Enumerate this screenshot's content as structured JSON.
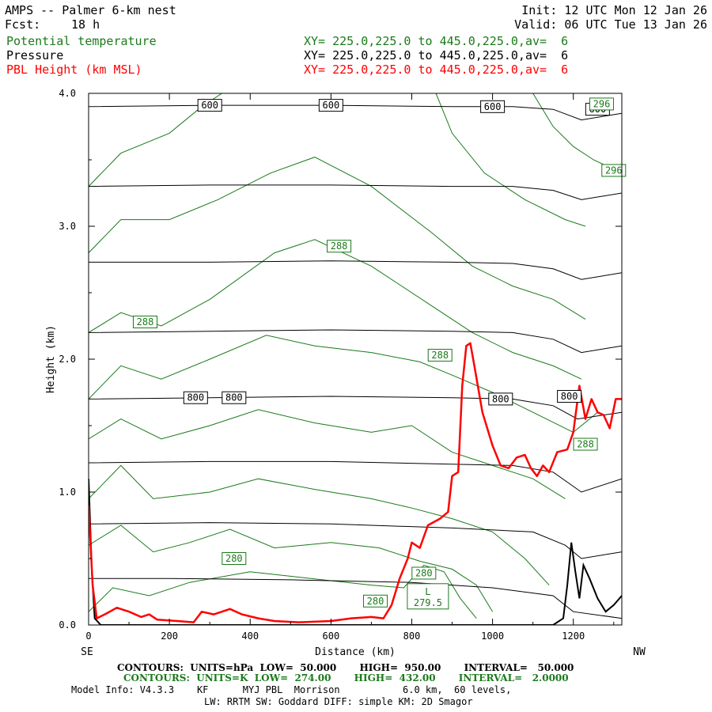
{
  "header": {
    "title": "AMPS -- Palmer 6-km nest",
    "fcst_label": "Fcst:",
    "fcst_value": "18 h",
    "init": "Init: 12 UTC Mon 12 Jan 26",
    "valid": "Valid: 06 UTC Tue 13 Jan 26",
    "fields": [
      {
        "name": "Potential temperature",
        "xy": "XY= 225.0,225.0 to 445.0,225.0,av=  6",
        "color": "#1a7a1a"
      },
      {
        "name": "Pressure",
        "xy": "XY= 225.0,225.0 to 445.0,225.0,av=  6",
        "color": "#000000"
      },
      {
        "name": "PBL Height (km MSL)",
        "xy": "XY= 225.0,225.0 to 445.0,225.0,av=  6",
        "color": "#ff0000"
      }
    ]
  },
  "chart_data": {
    "type": "line",
    "xlabel": "Distance (km)",
    "ylabel": "Height (km)",
    "xlim": [
      0,
      1320
    ],
    "ylim": [
      0,
      4.0
    ],
    "x_ticks": [
      0,
      200,
      400,
      600,
      800,
      1000,
      1200
    ],
    "y_ticks": [
      "0.0",
      "1.0",
      "2.0",
      "3.0",
      "4.0"
    ],
    "x_end_labels": {
      "left": "SE",
      "right": "NW"
    },
    "pressure_contours": [
      {
        "level": 950,
        "points": [
          [
            0,
            0.35
          ],
          [
            200,
            0.35
          ],
          [
            500,
            0.34
          ],
          [
            800,
            0.32
          ],
          [
            1000,
            0.28
          ],
          [
            1150,
            0.22
          ],
          [
            1200,
            0.1
          ],
          [
            1320,
            0.05
          ]
        ]
      },
      {
        "level": 900,
        "points": [
          [
            0,
            0.76
          ],
          [
            300,
            0.77
          ],
          [
            600,
            0.76
          ],
          [
            900,
            0.73
          ],
          [
            1100,
            0.7
          ],
          [
            1180,
            0.6
          ],
          [
            1220,
            0.5
          ],
          [
            1320,
            0.55
          ]
        ]
      },
      {
        "level": 850,
        "points": [
          [
            0,
            1.22
          ],
          [
            300,
            1.23
          ],
          [
            600,
            1.23
          ],
          [
            900,
            1.21
          ],
          [
            1050,
            1.2
          ],
          [
            1150,
            1.15
          ],
          [
            1220,
            1.0
          ],
          [
            1320,
            1.1
          ]
        ]
      },
      {
        "level": 800,
        "points": [
          [
            0,
            1.7
          ],
          [
            300,
            1.71
          ],
          [
            600,
            1.72
          ],
          [
            900,
            1.71
          ],
          [
            1050,
            1.7
          ],
          [
            1150,
            1.65
          ],
          [
            1210,
            1.55
          ],
          [
            1320,
            1.6
          ]
        ]
      },
      {
        "level": 750,
        "points": [
          [
            0,
            2.2
          ],
          [
            300,
            2.21
          ],
          [
            600,
            2.22
          ],
          [
            900,
            2.21
          ],
          [
            1050,
            2.2
          ],
          [
            1150,
            2.15
          ],
          [
            1220,
            2.05
          ],
          [
            1320,
            2.1
          ]
        ]
      },
      {
        "level": 700,
        "points": [
          [
            0,
            2.73
          ],
          [
            300,
            2.73
          ],
          [
            600,
            2.74
          ],
          [
            900,
            2.73
          ],
          [
            1050,
            2.72
          ],
          [
            1150,
            2.68
          ],
          [
            1220,
            2.6
          ],
          [
            1320,
            2.65
          ]
        ]
      },
      {
        "level": 650,
        "points": [
          [
            0,
            3.3
          ],
          [
            300,
            3.31
          ],
          [
            600,
            3.31
          ],
          [
            900,
            3.3
          ],
          [
            1050,
            3.3
          ],
          [
            1150,
            3.27
          ],
          [
            1220,
            3.2
          ],
          [
            1320,
            3.25
          ]
        ]
      },
      {
        "level": 600,
        "points": [
          [
            0,
            3.9
          ],
          [
            300,
            3.91
          ],
          [
            600,
            3.91
          ],
          [
            900,
            3.9
          ],
          [
            1050,
            3.9
          ],
          [
            1150,
            3.88
          ],
          [
            1220,
            3.8
          ],
          [
            1320,
            3.85
          ]
        ]
      }
    ],
    "pressure_labels": [
      {
        "text": "600",
        "x": 300,
        "y": 3.91
      },
      {
        "text": "600",
        "x": 600,
        "y": 3.91
      },
      {
        "text": "600",
        "x": 1000,
        "y": 3.9
      },
      {
        "text": "600",
        "x": 1260,
        "y": 3.88
      },
      {
        "text": "800",
        "x": 265,
        "y": 1.71
      },
      {
        "text": "800",
        "x": 360,
        "y": 1.71
      },
      {
        "text": "800",
        "x": 1020,
        "y": 1.7
      },
      {
        "text": "800",
        "x": 1190,
        "y": 1.72
      }
    ],
    "theta_contours": [
      {
        "level": 280,
        "points": [
          [
            0,
            0.1
          ],
          [
            60,
            0.28
          ],
          [
            150,
            0.22
          ],
          [
            250,
            0.32
          ],
          [
            400,
            0.4
          ],
          [
            550,
            0.35
          ],
          [
            700,
            0.3
          ],
          [
            780,
            0.28
          ],
          [
            830,
            0.45
          ],
          [
            880,
            0.4
          ],
          [
            920,
            0.2
          ],
          [
            960,
            0.05
          ]
        ]
      },
      {
        "level": 282,
        "points": [
          [
            0,
            0.6
          ],
          [
            80,
            0.75
          ],
          [
            160,
            0.55
          ],
          [
            250,
            0.62
          ],
          [
            350,
            0.72
          ],
          [
            460,
            0.58
          ],
          [
            600,
            0.62
          ],
          [
            720,
            0.58
          ],
          [
            820,
            0.48
          ],
          [
            900,
            0.42
          ],
          [
            960,
            0.3
          ],
          [
            1000,
            0.1
          ]
        ]
      },
      {
        "level": 284,
        "points": [
          [
            0,
            0.95
          ],
          [
            80,
            1.2
          ],
          [
            160,
            0.95
          ],
          [
            300,
            1.0
          ],
          [
            420,
            1.1
          ],
          [
            560,
            1.02
          ],
          [
            700,
            0.95
          ],
          [
            800,
            0.88
          ],
          [
            900,
            0.8
          ],
          [
            1000,
            0.7
          ],
          [
            1080,
            0.5
          ],
          [
            1140,
            0.3
          ]
        ]
      },
      {
        "level": 286,
        "points": [
          [
            0,
            1.4
          ],
          [
            80,
            1.55
          ],
          [
            180,
            1.4
          ],
          [
            300,
            1.5
          ],
          [
            420,
            1.62
          ],
          [
            560,
            1.52
          ],
          [
            700,
            1.45
          ],
          [
            800,
            1.5
          ],
          [
            900,
            1.3
          ],
          [
            1000,
            1.2
          ],
          [
            1100,
            1.1
          ],
          [
            1180,
            0.95
          ]
        ]
      },
      {
        "level": 288,
        "points": [
          [
            0,
            1.7
          ],
          [
            80,
            1.95
          ],
          [
            180,
            1.85
          ],
          [
            300,
            2.0
          ],
          [
            440,
            2.18
          ],
          [
            560,
            2.1
          ],
          [
            700,
            2.05
          ],
          [
            820,
            1.98
          ],
          [
            900,
            1.88
          ],
          [
            1000,
            1.75
          ],
          [
            1100,
            1.6
          ],
          [
            1200,
            1.45
          ],
          [
            1260,
            1.6
          ]
        ]
      },
      {
        "level": 290,
        "points": [
          [
            0,
            2.2
          ],
          [
            80,
            2.35
          ],
          [
            180,
            2.25
          ],
          [
            300,
            2.45
          ],
          [
            460,
            2.8
          ],
          [
            560,
            2.9
          ],
          [
            700,
            2.7
          ],
          [
            850,
            2.4
          ],
          [
            950,
            2.2
          ],
          [
            1050,
            2.05
          ],
          [
            1150,
            1.95
          ],
          [
            1220,
            1.85
          ]
        ]
      },
      {
        "level": 292,
        "points": [
          [
            0,
            2.8
          ],
          [
            80,
            3.05
          ],
          [
            200,
            3.05
          ],
          [
            320,
            3.2
          ],
          [
            450,
            3.4
          ],
          [
            560,
            3.52
          ],
          [
            700,
            3.3
          ],
          [
            850,
            2.95
          ],
          [
            950,
            2.7
          ],
          [
            1050,
            2.55
          ],
          [
            1150,
            2.45
          ],
          [
            1230,
            2.3
          ]
        ]
      },
      {
        "level": 294,
        "points": [
          [
            0,
            3.3
          ],
          [
            80,
            3.55
          ],
          [
            200,
            3.7
          ],
          [
            280,
            3.9
          ],
          [
            330,
            4.0
          ]
        ]
      },
      {
        "level": 294,
        "points": [
          [
            860,
            4.0
          ],
          [
            900,
            3.7
          ],
          [
            980,
            3.4
          ],
          [
            1080,
            3.2
          ],
          [
            1180,
            3.05
          ],
          [
            1230,
            3.0
          ]
        ]
      },
      {
        "level": 296,
        "points": [
          [
            1100,
            4.0
          ],
          [
            1150,
            3.75
          ],
          [
            1200,
            3.6
          ],
          [
            1250,
            3.5
          ],
          [
            1320,
            3.4
          ]
        ]
      }
    ],
    "theta_labels": [
      {
        "text": "280",
        "x": 360,
        "y": 0.5
      },
      {
        "text": "280",
        "x": 710,
        "y": 0.18
      },
      {
        "text": "280",
        "x": 830,
        "y": 0.39
      },
      {
        "text": "288",
        "x": 140,
        "y": 2.28
      },
      {
        "text": "288",
        "x": 620,
        "y": 2.85
      },
      {
        "text": "288",
        "x": 870,
        "y": 2.03
      },
      {
        "text": "288",
        "x": 1230,
        "y": 1.36
      },
      {
        "text": "296",
        "x": 1270,
        "y": 3.92
      },
      {
        "text": "296",
        "x": 1300,
        "y": 3.42
      }
    ],
    "theta_min": {
      "symbol": "L",
      "value": "279.5",
      "x": 840,
      "y": 0.15
    },
    "terrain": [
      [
        0,
        1.1
      ],
      [
        8,
        0.4
      ],
      [
        15,
        0.05
      ],
      [
        30,
        0.0
      ],
      [
        1150,
        0.0
      ],
      [
        1175,
        0.05
      ],
      [
        1185,
        0.3
      ],
      [
        1195,
        0.62
      ],
      [
        1205,
        0.4
      ],
      [
        1215,
        0.2
      ],
      [
        1225,
        0.45
      ],
      [
        1240,
        0.35
      ],
      [
        1260,
        0.2
      ],
      [
        1280,
        0.1
      ],
      [
        1300,
        0.15
      ],
      [
        1320,
        0.22
      ]
    ],
    "pbl_height": [
      [
        0,
        0.9
      ],
      [
        10,
        0.3
      ],
      [
        20,
        0.05
      ],
      [
        40,
        0.08
      ],
      [
        70,
        0.13
      ],
      [
        100,
        0.1
      ],
      [
        130,
        0.06
      ],
      [
        150,
        0.08
      ],
      [
        170,
        0.04
      ],
      [
        220,
        0.03
      ],
      [
        260,
        0.02
      ],
      [
        280,
        0.1
      ],
      [
        310,
        0.08
      ],
      [
        350,
        0.12
      ],
      [
        380,
        0.08
      ],
      [
        420,
        0.05
      ],
      [
        460,
        0.03
      ],
      [
        520,
        0.02
      ],
      [
        600,
        0.03
      ],
      [
        650,
        0.05
      ],
      [
        700,
        0.06
      ],
      [
        730,
        0.05
      ],
      [
        750,
        0.15
      ],
      [
        770,
        0.35
      ],
      [
        790,
        0.5
      ],
      [
        800,
        0.62
      ],
      [
        820,
        0.58
      ],
      [
        840,
        0.75
      ],
      [
        870,
        0.8
      ],
      [
        890,
        0.85
      ],
      [
        900,
        1.12
      ],
      [
        915,
        1.15
      ],
      [
        925,
        1.8
      ],
      [
        935,
        2.1
      ],
      [
        945,
        2.12
      ],
      [
        955,
        1.95
      ],
      [
        975,
        1.6
      ],
      [
        1000,
        1.35
      ],
      [
        1020,
        1.2
      ],
      [
        1040,
        1.18
      ],
      [
        1060,
        1.26
      ],
      [
        1080,
        1.28
      ],
      [
        1095,
        1.18
      ],
      [
        1110,
        1.12
      ],
      [
        1125,
        1.2
      ],
      [
        1140,
        1.15
      ],
      [
        1160,
        1.3
      ],
      [
        1185,
        1.32
      ],
      [
        1200,
        1.45
      ],
      [
        1215,
        1.8
      ],
      [
        1230,
        1.55
      ],
      [
        1245,
        1.7
      ],
      [
        1260,
        1.6
      ],
      [
        1275,
        1.58
      ],
      [
        1290,
        1.48
      ],
      [
        1305,
        1.7
      ],
      [
        1320,
        1.7
      ]
    ]
  },
  "footer": {
    "line1": "CONTOURS:  UNITS=hPa  LOW=  50.000       HIGH=  950.00       INTERVAL=   50.000",
    "line2": "CONTOURS:  UNITS=K  LOW=  274.00       HIGH=  432.00       INTERVAL=   2.0000",
    "line3": "Model Info: V4.3.3    KF      MYJ PBL  Morrison           6.0 km,  60 levels,",
    "line4": "LW: RRTM SW: Goddard DIFF: simple KM: 2D Smagor"
  }
}
